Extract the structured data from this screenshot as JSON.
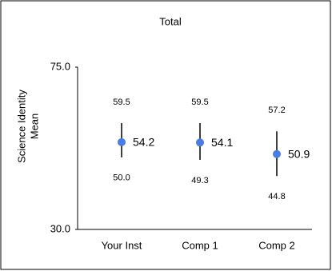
{
  "chart_data": {
    "type": "errorbar",
    "title": "Total",
    "y_label": [
      "Science Identity",
      "Mean"
    ],
    "categories": [
      "Your Inst",
      "Comp 1",
      "Comp 2"
    ],
    "values": [
      54.2,
      54.1,
      50.9
    ],
    "high": [
      59.5,
      59.5,
      57.2
    ],
    "high_labels": [
      "59.5",
      "59.5",
      "57.2"
    ],
    "low": [
      50.0,
      49.3,
      44.8
    ],
    "low_labels": [
      "50.0",
      "49.3",
      "44.8"
    ],
    "color": "#4a7ce6",
    "ylim": [
      30,
      75
    ],
    "yticks": [
      {
        "value": 30,
        "label": "30.0"
      },
      {
        "value": 75,
        "label": "75.0"
      }
    ]
  }
}
